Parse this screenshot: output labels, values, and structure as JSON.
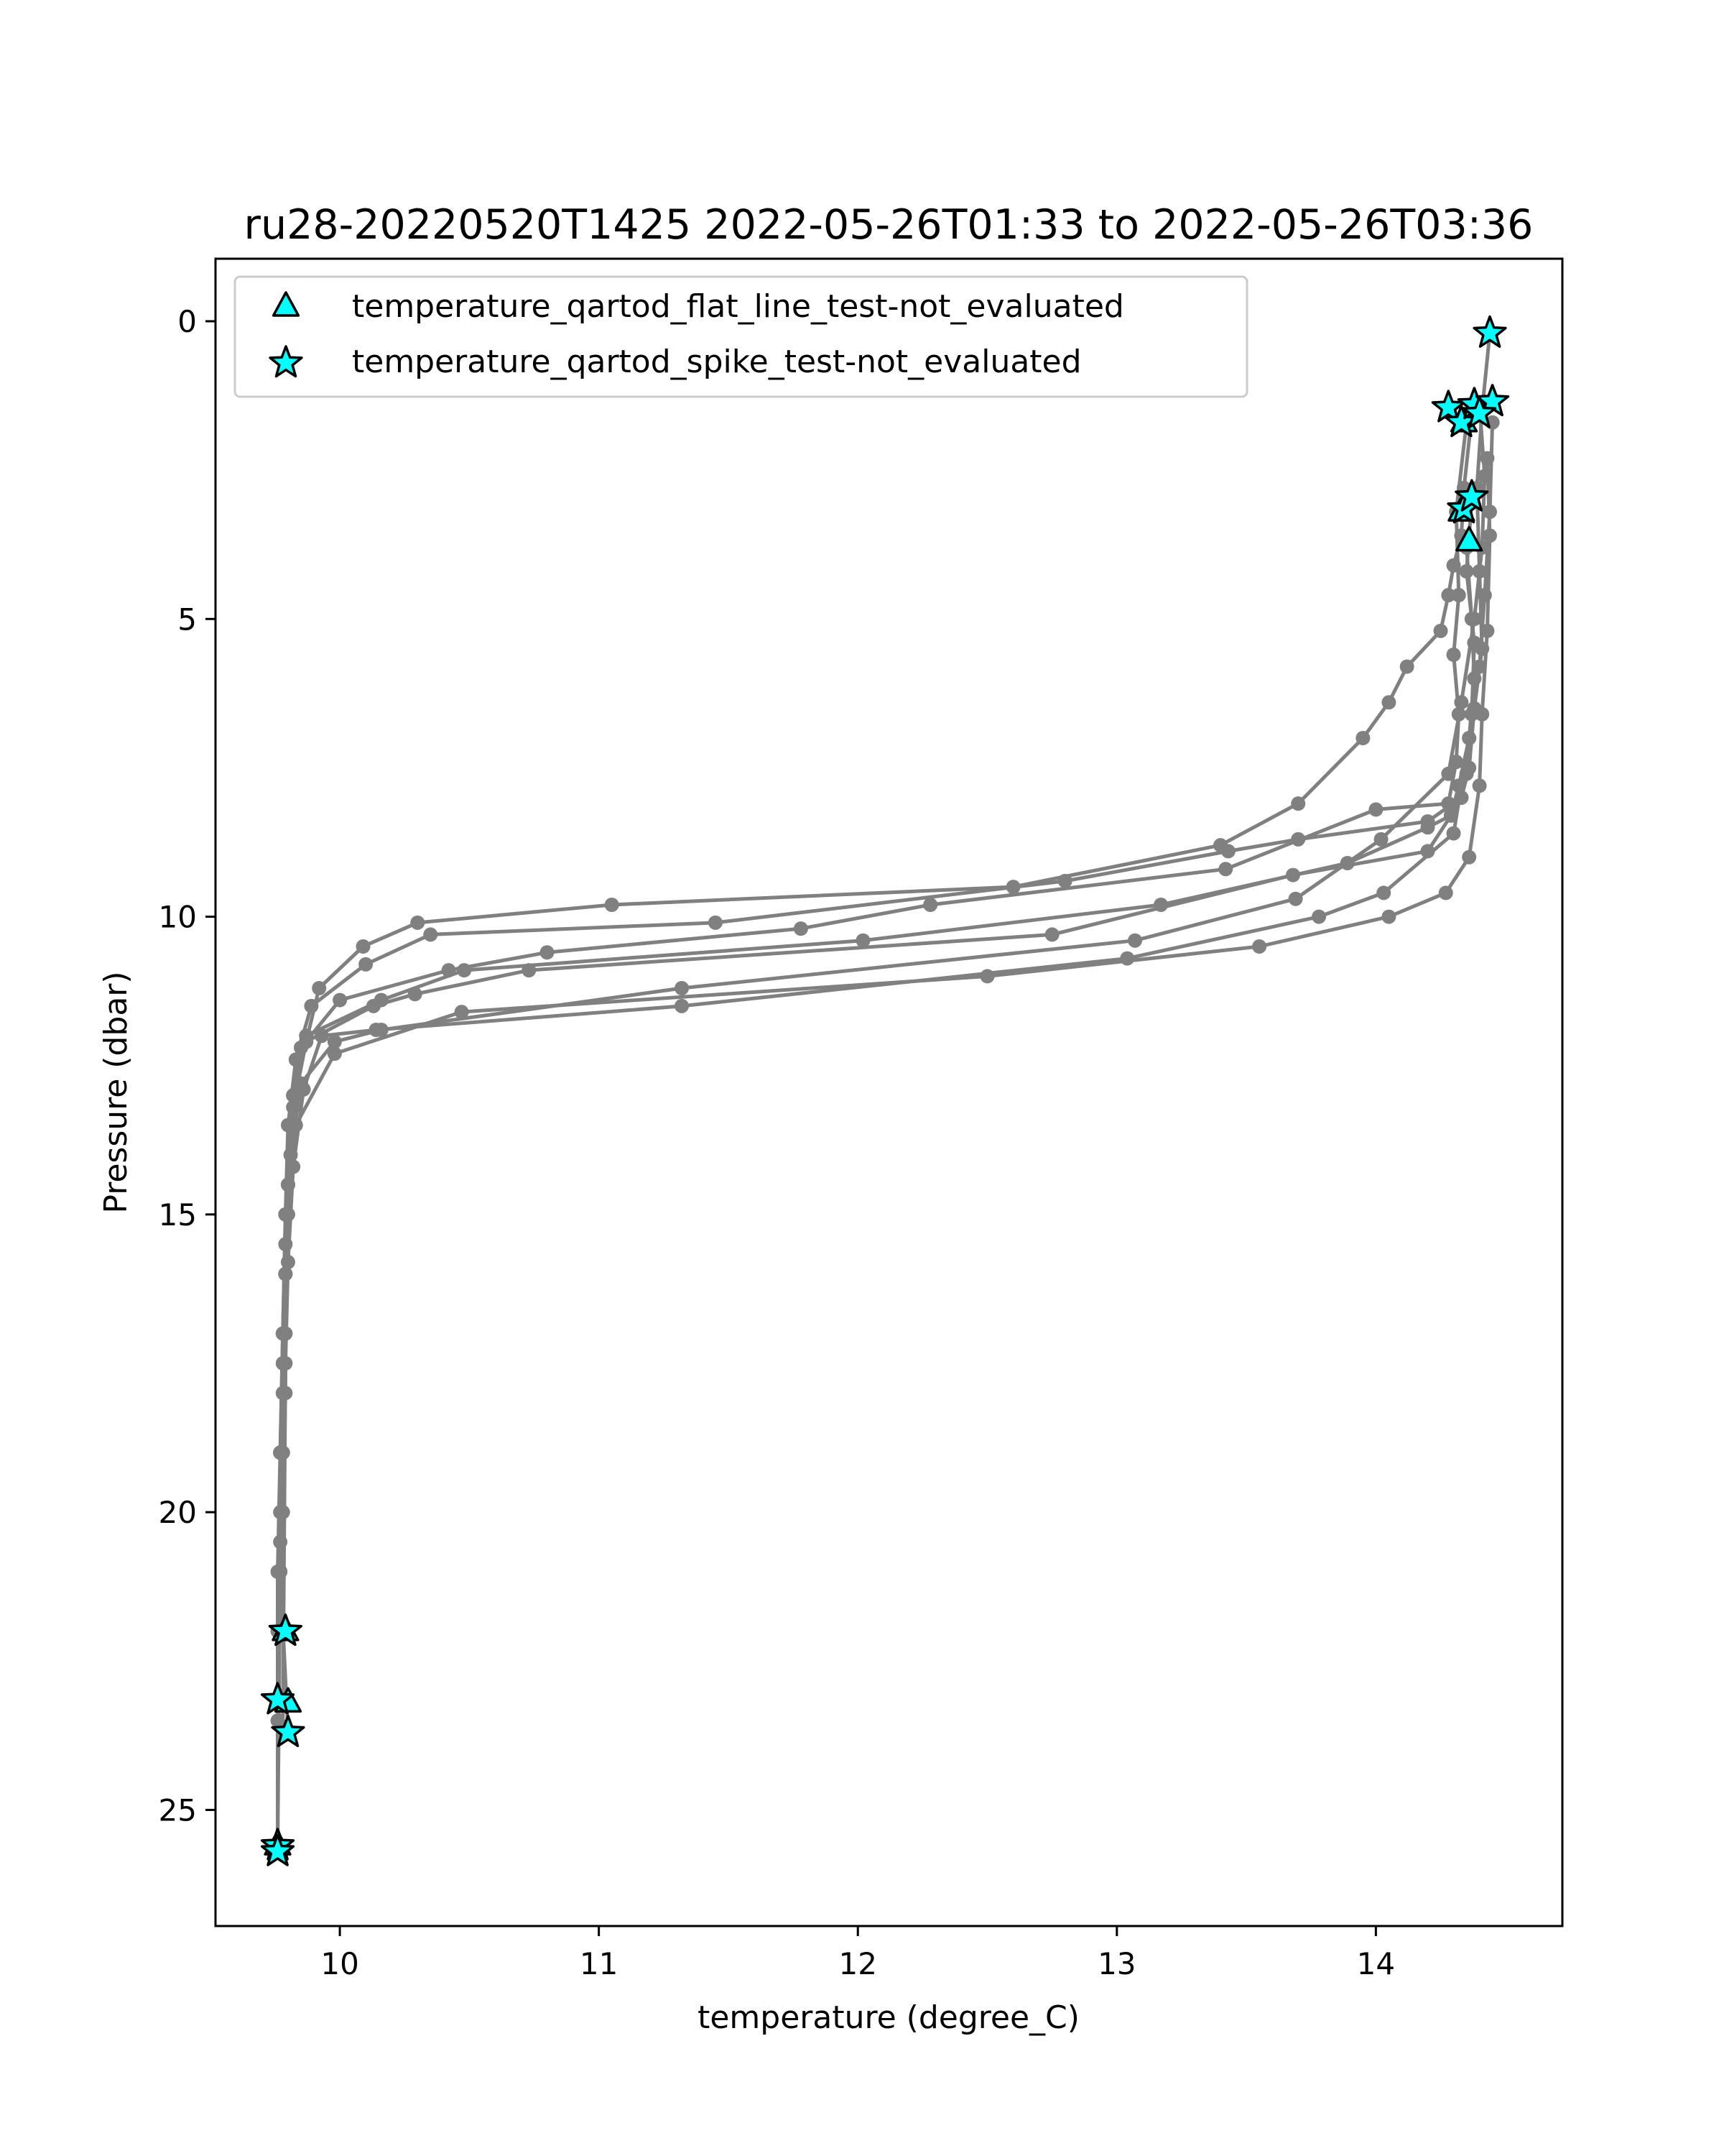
{
  "chart_data": {
    "type": "scatter",
    "title": "ru28-20220520T1425 2022-05-26T01:33 to 2022-05-26T03:36",
    "xlabel": "temperature (degree_C)",
    "ylabel": "Pressure (dbar)",
    "xlim": [
      9.52,
      14.72
    ],
    "ylim": [
      26.95,
      -1.05
    ],
    "y_inverted": true,
    "xticks": [
      10,
      11,
      12,
      13,
      14
    ],
    "yticks": [
      0,
      5,
      10,
      15,
      20,
      25
    ],
    "grid": false,
    "legend_position": "upper-left",
    "profile_color": "#808080",
    "marker_fill": "#00ffff",
    "marker_edge": "#000000",
    "profiles": [
      {
        "temperature": [
          14.37,
          14.34,
          14.33,
          14.3,
          14.28,
          14.25,
          14.12,
          14.05,
          13.95,
          13.7,
          13.4,
          12.6,
          11.05,
          10.3,
          10.09,
          9.92,
          9.87,
          9.82,
          9.8,
          9.79,
          9.78,
          9.77,
          9.77,
          9.76,
          9.76,
          9.76
        ],
        "pressure": [
          1.6,
          2.8,
          3.6,
          4.1,
          4.6,
          5.2,
          5.8,
          6.4,
          7.0,
          8.1,
          8.8,
          9.5,
          9.8,
          10.1,
          10.5,
          11.2,
          12.1,
          13.0,
          14.5,
          16.0,
          17.5,
          19.0,
          20.5,
          22.0,
          23.5,
          25.6
        ]
      },
      {
        "temperature": [
          14.44,
          14.41,
          14.39,
          14.4,
          14.41,
          14.38,
          14.36,
          14.33,
          14.2,
          13.7,
          13.43,
          12.8,
          11.45,
          10.35,
          10.1,
          9.89,
          9.83,
          9.8,
          9.79,
          9.78,
          9.77,
          9.76,
          9.76,
          9.76
        ],
        "pressure": [
          0.2,
          1.5,
          2.8,
          4.2,
          5.5,
          6.5,
          7.5,
          8.0,
          8.4,
          8.7,
          8.9,
          9.4,
          10.1,
          10.3,
          10.8,
          11.5,
          12.4,
          13.5,
          15.0,
          17.0,
          19.0,
          21.0,
          23.2,
          25.7
        ]
      },
      {
        "temperature": [
          14.35,
          14.31,
          14.32,
          14.3,
          14.32,
          14.31,
          14.28,
          14.0,
          13.42,
          12.28,
          11.78,
          10.8,
          10.42,
          10.0,
          9.85,
          9.81,
          9.79,
          9.78,
          9.77,
          9.77,
          9.76
        ],
        "pressure": [
          1.7,
          3.2,
          4.6,
          5.6,
          6.6,
          7.4,
          8.1,
          8.2,
          9.2,
          9.8,
          10.2,
          10.6,
          10.9,
          11.4,
          12.2,
          13.5,
          15.0,
          17.0,
          19.0,
          21.0,
          25.6
        ]
      },
      {
        "temperature": [
          14.37,
          14.35,
          14.38,
          14.37,
          14.35,
          14.33,
          14.29,
          14.2,
          13.89,
          13.17,
          12.02,
          10.48,
          10.16,
          9.87,
          9.82,
          9.8,
          9.79,
          9.79,
          9.78,
          9.77
        ],
        "pressure": [
          3.0,
          4.2,
          5.4,
          6.6,
          7.6,
          8.0,
          8.3,
          8.5,
          9.1,
          9.8,
          10.4,
          10.9,
          11.4,
          12.0,
          13.0,
          14.5,
          16.0,
          18.0,
          20.0,
          22.0
        ]
      },
      {
        "temperature": [
          14.35,
          14.37,
          14.38,
          14.36,
          14.32,
          14.29,
          14.2,
          13.68,
          12.75,
          10.73,
          10.29,
          10.13,
          9.87,
          9.82,
          9.8,
          9.79,
          9.78,
          9.77,
          9.77
        ],
        "pressure": [
          3.8,
          5.0,
          6.0,
          7.0,
          7.8,
          8.3,
          8.9,
          9.3,
          10.3,
          10.9,
          11.3,
          11.5,
          12.1,
          13.2,
          14.5,
          16.0,
          18.0,
          20.0,
          22.0
        ]
      },
      {
        "temperature": [
          14.4,
          14.42,
          14.41,
          14.38,
          14.33,
          14.28,
          14.02,
          13.69,
          13.07,
          11.32,
          10.16,
          9.98,
          9.85,
          9.81,
          9.79,
          9.79,
          9.78,
          9.77,
          9.8
        ],
        "pressure": [
          1.4,
          2.6,
          3.8,
          5.0,
          6.4,
          7.6,
          8.7,
          9.7,
          10.4,
          11.2,
          11.9,
          12.1,
          12.8,
          14.0,
          15.5,
          17.0,
          19.0,
          21.0,
          23.7
        ]
      },
      {
        "temperature": [
          14.45,
          14.44,
          14.42,
          14.4,
          14.36,
          14.3,
          14.03,
          13.78,
          13.04,
          11.32,
          10.14,
          9.93,
          9.86,
          9.82,
          9.8,
          9.79,
          9.78
        ],
        "pressure": [
          1.7,
          3.2,
          4.6,
          5.8,
          7.0,
          8.6,
          9.6,
          10.0,
          10.7,
          11.5,
          11.9,
          12.0,
          12.9,
          14.2,
          15.8,
          17.5,
          23.6
        ]
      },
      {
        "temperature": [
          14.43,
          14.44,
          14.43,
          14.41,
          14.4,
          14.36,
          14.27,
          14.05,
          13.55,
          12.5,
          10.47,
          9.98,
          9.83,
          9.8,
          9.79,
          9.78,
          9.77
        ],
        "pressure": [
          2.3,
          3.6,
          5.2,
          6.6,
          7.8,
          9.0,
          9.6,
          10.0,
          10.5,
          11.0,
          11.6,
          12.3,
          13.5,
          15.0,
          17.0,
          19.0,
          21.0
        ]
      }
    ],
    "series": [
      {
        "name": "temperature_qartod_flat_line_test-not_evaluated",
        "marker": "triangle",
        "points": [
          [
            14.34,
            1.7
          ],
          [
            14.33,
            3.2
          ],
          [
            14.36,
            3.7
          ],
          [
            9.8,
            23.2
          ],
          [
            9.76,
            25.6
          ],
          [
            9.79,
            22.0
          ]
        ]
      },
      {
        "name": "temperature_qartod_spike_test-not_evaluated",
        "marker": "star",
        "points": [
          [
            14.44,
            0.2
          ],
          [
            14.28,
            1.45
          ],
          [
            14.33,
            1.7
          ],
          [
            14.38,
            1.4
          ],
          [
            14.45,
            1.35
          ],
          [
            14.4,
            1.55
          ],
          [
            14.34,
            3.15
          ],
          [
            14.37,
            2.95
          ],
          [
            9.79,
            22.0
          ],
          [
            9.76,
            23.15
          ],
          [
            9.8,
            23.7
          ],
          [
            9.76,
            25.6
          ],
          [
            9.76,
            25.7
          ]
        ]
      }
    ]
  }
}
